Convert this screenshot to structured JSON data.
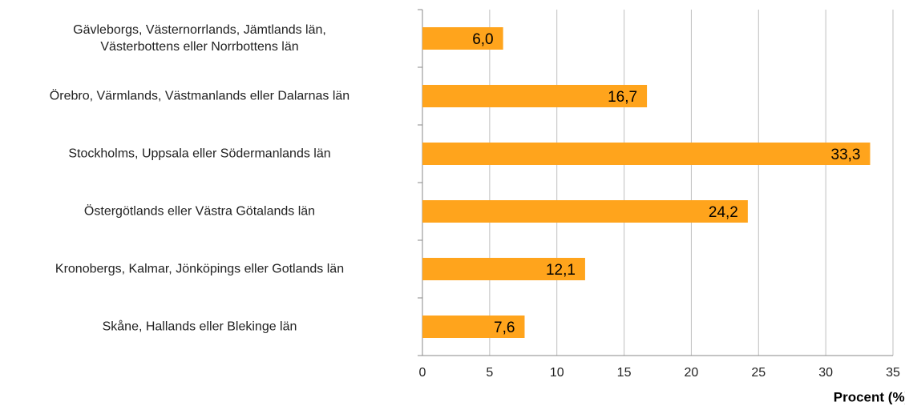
{
  "chart_data": {
    "type": "bar",
    "orientation": "horizontal",
    "x_label": "Procent (%)",
    "categories": [
      "Gävleborgs, Västernorrlands, Jämtlands län,\nVästerbottens eller Norrbottens län",
      "Örebro, Värmlands, Västmanlands eller Dalarnas län",
      "Stockholms, Uppsala eller Södermanlands län",
      "Östergötlands eller Västra Götalands län",
      "Kronobergs, Kalmar, Jönköpings eller Gotlands län",
      "Skåne, Hallands eller Blekinge län"
    ],
    "values": [
      6.0,
      16.7,
      33.3,
      24.2,
      12.1,
      7.6
    ],
    "value_labels": [
      "6,0",
      "16,7",
      "33,3",
      "24,2",
      "12,1",
      "7,6"
    ],
    "color": "#ffa41c",
    "xlim": [
      0,
      35
    ],
    "xticks": [
      0,
      5,
      10,
      15,
      20,
      25,
      30,
      35
    ],
    "grid": true
  }
}
